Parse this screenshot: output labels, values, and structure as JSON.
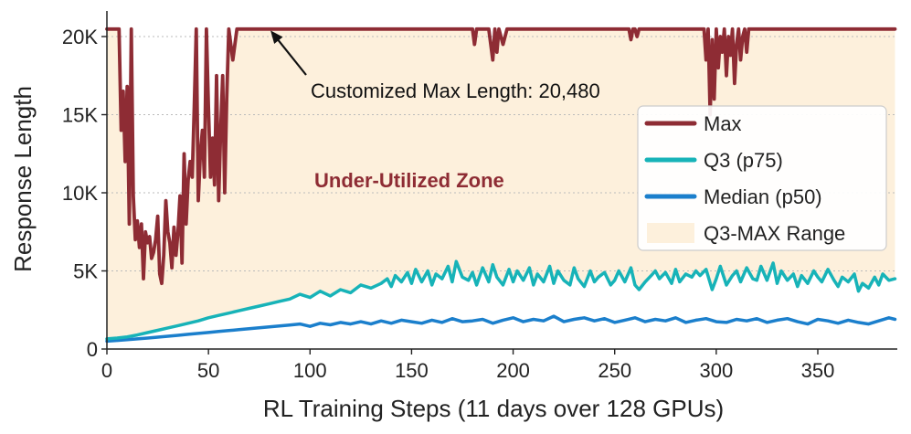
{
  "chart_data": {
    "type": "line",
    "xlabel": "RL Training Steps (11 days over 128 GPUs)",
    "ylabel": "Response Length",
    "xlim": [
      0,
      390
    ],
    "ylim": [
      0,
      21000
    ],
    "x_ticks": [
      0,
      50,
      100,
      150,
      200,
      250,
      300,
      350
    ],
    "x_tick_labels": [
      "0",
      "50",
      "100",
      "150",
      "200",
      "250",
      "300",
      "350"
    ],
    "y_ticks": [
      0,
      5000,
      10000,
      15000,
      20000
    ],
    "y_tick_labels": [
      "0",
      "5K",
      "10K",
      "15K",
      "20K"
    ],
    "grid": "horizontal-dotted",
    "legend_position": "right",
    "colors": {
      "max": "#8e2c34",
      "q3": "#17b3b8",
      "median": "#1b7fcc",
      "range": "#fdf0dc",
      "zone_text": "#8e2c34"
    },
    "series": [
      {
        "name": "Max",
        "x": [
          0,
          2,
          4,
          6,
          7,
          8,
          9,
          10,
          11,
          12,
          13,
          14,
          15,
          16,
          17,
          18,
          19,
          20,
          21,
          22,
          23,
          24,
          25,
          26,
          27,
          28,
          29,
          30,
          31,
          32,
          33,
          34,
          35,
          36,
          37,
          38,
          39,
          40,
          41,
          42,
          43,
          44,
          45,
          46,
          47,
          48,
          49,
          50,
          51,
          52,
          53,
          54,
          55,
          56,
          57,
          58,
          59,
          60,
          62,
          64,
          66,
          180,
          181,
          182,
          183,
          185,
          188,
          190,
          191,
          192,
          193,
          195,
          197,
          199,
          257,
          258,
          259,
          260,
          261,
          262,
          294,
          295,
          296,
          297,
          298,
          299,
          300,
          301,
          302,
          303,
          304,
          305,
          306,
          307,
          308,
          309,
          310,
          311,
          312,
          313,
          314,
          315,
          316,
          388
        ],
        "values": [
          20480,
          20480,
          20480,
          20480,
          14000,
          16500,
          12000,
          16800,
          8000,
          20480,
          9800,
          7000,
          8200,
          6500,
          8000,
          4500,
          7500,
          6800,
          7200,
          5800,
          6200,
          7000,
          8500,
          4800,
          4200,
          6000,
          9500,
          7500,
          6800,
          5200,
          7800,
          6000,
          7500,
          9800,
          5500,
          12500,
          8000,
          10800,
          12000,
          11000,
          15500,
          20480,
          9500,
          12500,
          14000,
          11000,
          20480,
          15500,
          11000,
          13500,
          10500,
          17500,
          9500,
          14000,
          17500,
          10000,
          16000,
          20480,
          18500,
          20480,
          20480,
          20480,
          19500,
          20480,
          20480,
          20480,
          20480,
          18500,
          20480,
          19000,
          20480,
          19500,
          20480,
          20480,
          20480,
          19800,
          20480,
          20480,
          20000,
          20480,
          20480,
          18500,
          20480,
          15000,
          19800,
          16000,
          20480,
          18000,
          20000,
          19000,
          20480,
          17500,
          20000,
          18800,
          20480,
          17000,
          19500,
          20480,
          18500,
          20000,
          20480,
          19000,
          20480,
          20480
        ]
      },
      {
        "name": "Q3 (p75)",
        "x": [
          0,
          5,
          10,
          15,
          20,
          25,
          30,
          35,
          40,
          45,
          50,
          55,
          60,
          65,
          70,
          75,
          80,
          85,
          90,
          95,
          100,
          105,
          110,
          115,
          120,
          125,
          130,
          135,
          138,
          140,
          142,
          145,
          148,
          150,
          152,
          155,
          158,
          160,
          162,
          165,
          168,
          170,
          172,
          175,
          178,
          180,
          182,
          185,
          188,
          190,
          192,
          195,
          198,
          200,
          202,
          205,
          208,
          210,
          212,
          215,
          218,
          220,
          222,
          225,
          228,
          230,
          232,
          235,
          238,
          240,
          242,
          245,
          248,
          250,
          252,
          255,
          258,
          260,
          262,
          265,
          268,
          270,
          272,
          275,
          278,
          280,
          282,
          285,
          288,
          290,
          292,
          295,
          298,
          300,
          302,
          305,
          308,
          310,
          312,
          315,
          318,
          320,
          322,
          325,
          328,
          330,
          332,
          335,
          338,
          340,
          342,
          345,
          348,
          350,
          352,
          355,
          358,
          360,
          362,
          365,
          368,
          370,
          372,
          375,
          378,
          380,
          382,
          385,
          388
        ],
        "values": [
          650,
          700,
          780,
          900,
          1050,
          1200,
          1350,
          1500,
          1650,
          1800,
          2000,
          2150,
          2300,
          2450,
          2600,
          2750,
          2900,
          3050,
          3200,
          3500,
          3300,
          3700,
          3400,
          3800,
          3600,
          4100,
          3900,
          4200,
          4500,
          4000,
          4700,
          4300,
          4900,
          4200,
          5100,
          4300,
          5000,
          4100,
          4800,
          4500,
          5300,
          4300,
          5600,
          4600,
          4400,
          4900,
          4100,
          5200,
          4300,
          5400,
          4600,
          4100,
          5100,
          4300,
          5000,
          4400,
          5200,
          4100,
          4800,
          4300,
          5300,
          4200,
          5000,
          4400,
          4100,
          5200,
          4500,
          4000,
          5000,
          4300,
          4600,
          4900,
          4100,
          4400,
          5000,
          4300,
          5200,
          4100,
          3800,
          4300,
          4700,
          5000,
          4500,
          4900,
          4200,
          5100,
          4300,
          4800,
          4600,
          5000,
          4700,
          5100,
          3800,
          4500,
          5300,
          4100,
          4700,
          5000,
          4300,
          5200,
          4500,
          4400,
          5300,
          4400,
          5500,
          4200,
          5000,
          4400,
          4800,
          4000,
          4700,
          4200,
          5000,
          4600,
          4300,
          5100,
          4400,
          4000,
          4600,
          4300,
          4800,
          3700,
          4200,
          3900,
          4600,
          4100,
          4800,
          4400,
          4500
        ]
      },
      {
        "name": "Median (p50)",
        "x": [
          0,
          5,
          10,
          15,
          20,
          25,
          30,
          35,
          40,
          45,
          50,
          55,
          60,
          65,
          70,
          75,
          80,
          85,
          90,
          95,
          100,
          105,
          110,
          115,
          120,
          125,
          130,
          135,
          140,
          145,
          150,
          155,
          160,
          165,
          170,
          175,
          180,
          185,
          190,
          195,
          200,
          205,
          210,
          215,
          220,
          225,
          230,
          235,
          240,
          245,
          250,
          255,
          260,
          265,
          270,
          275,
          280,
          285,
          290,
          295,
          300,
          305,
          310,
          315,
          320,
          325,
          330,
          335,
          340,
          345,
          350,
          355,
          360,
          365,
          370,
          375,
          380,
          385,
          388
        ],
        "values": [
          500,
          550,
          600,
          650,
          700,
          760,
          820,
          880,
          940,
          1000,
          1060,
          1120,
          1180,
          1240,
          1300,
          1360,
          1420,
          1480,
          1540,
          1600,
          1450,
          1650,
          1550,
          1700,
          1600,
          1750,
          1600,
          1800,
          1650,
          1850,
          1750,
          1650,
          1850,
          1700,
          1950,
          1750,
          1800,
          1900,
          1650,
          1850,
          2000,
          1750,
          1900,
          1800,
          2100,
          1750,
          1900,
          2000,
          1800,
          1950,
          1700,
          1850,
          2000,
          1750,
          1900,
          1800,
          2000,
          1700,
          1850,
          1950,
          1750,
          1700,
          1900,
          1800,
          1950,
          1700,
          1850,
          1950,
          1750,
          1600,
          1900,
          1800,
          1650,
          1850,
          1700,
          1600,
          1800,
          2000,
          1900
        ]
      }
    ],
    "band": {
      "name": "Q3-MAX Range"
    }
  },
  "annotation": {
    "text": "Customized Max Length: 20,480",
    "arrow_target_x": 80,
    "arrow_target_y": 20480
  },
  "zone_label": "Under-Utilized Zone",
  "legend": {
    "items": [
      {
        "label": "Max",
        "kind": "line",
        "color": "#8e2c34"
      },
      {
        "label": "Q3 (p75)",
        "kind": "line",
        "color": "#17b3b8"
      },
      {
        "label": "Median (p50)",
        "kind": "line",
        "color": "#1b7fcc"
      },
      {
        "label": "Q3-MAX Range",
        "kind": "patch",
        "color": "#fdf0dc"
      }
    ]
  }
}
